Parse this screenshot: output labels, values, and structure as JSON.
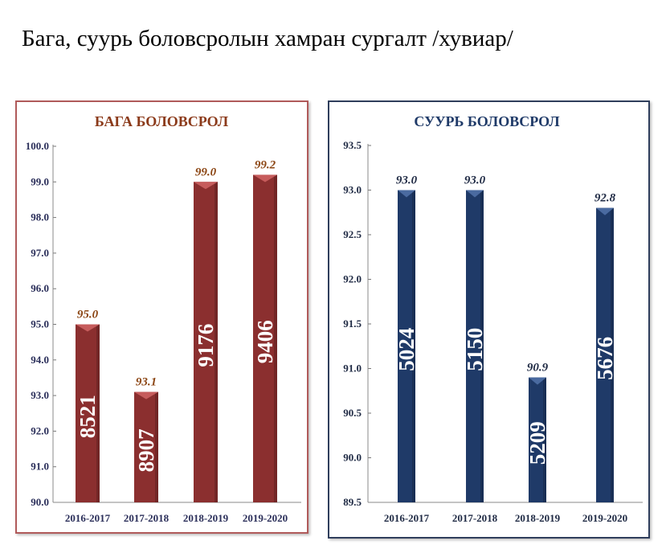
{
  "title": "Бага, суурь боловсролын хамран сургалт /хувиар/",
  "chart_data": [
    {
      "type": "bar",
      "title": "БАГА БОЛОВСРОЛ",
      "categories": [
        "2016-2017",
        "2017-2018",
        "2018-2019",
        "2019-2020"
      ],
      "values": [
        95.0,
        93.1,
        99.0,
        99.2
      ],
      "value_labels": [
        "95.0",
        "93.1",
        "99.0",
        "99.2"
      ],
      "bar_inner_labels": [
        "8521",
        "8907",
        "9176",
        "9406"
      ],
      "ylim": [
        90.0,
        100.0
      ],
      "yticks": [
        "90.0",
        "91.0",
        "92.0",
        "93.0",
        "94.0",
        "95.0",
        "96.0",
        "97.0",
        "98.0",
        "99.0",
        "100.0"
      ],
      "colors": {
        "bar": "#8b2f2f",
        "bar_top": "#c65c5c",
        "title": "#8b3a1a",
        "value_label": "#8b4513",
        "axis_text": "#2b2f5a",
        "frame": "#b05a5a"
      }
    },
    {
      "type": "bar",
      "title": "СУУРЬ БОЛОВСРОЛ",
      "categories": [
        "2016-2017",
        "2017-2018",
        "2018-2019",
        "2019-2020"
      ],
      "values": [
        93.0,
        93.0,
        90.9,
        92.8
      ],
      "value_labels": [
        "93.0",
        "93.0",
        "90.9",
        "92.8"
      ],
      "bar_inner_labels": [
        "5024",
        "5150",
        "5209",
        "5676"
      ],
      "ylim": [
        89.5,
        93.5
      ],
      "yticks": [
        "89.5",
        "90.0",
        "90.5",
        "91.0",
        "91.5",
        "92.0",
        "92.5",
        "93.0",
        "93.5"
      ],
      "colors": {
        "bar": "#1f3a68",
        "bar_top": "#4a6aa0",
        "title": "#1f3a68",
        "value_label": "#1f2a44",
        "axis_text": "#1f2a44",
        "frame": "#2f3e5c"
      }
    }
  ]
}
